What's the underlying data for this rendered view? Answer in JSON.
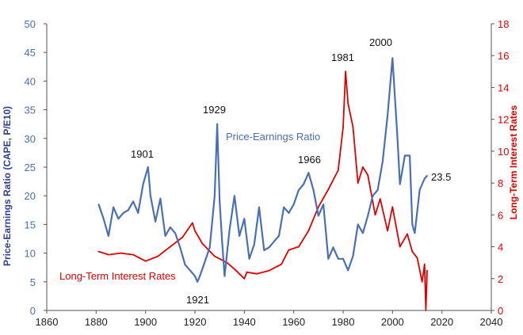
{
  "chart_data": {
    "type": "line",
    "title": "",
    "xlabel": "",
    "xlim": [
      1860,
      2040
    ],
    "x_ticks": [
      "1860",
      "1880",
      "1900",
      "1920",
      "1940",
      "1960",
      "1980",
      "2000",
      "2020",
      "2040"
    ],
    "y_left": {
      "label": "Price-Earnings Ratio (CAPE, P/E10)",
      "lim": [
        0,
        50
      ],
      "ticks": [
        "0",
        "5",
        "10",
        "15",
        "20",
        "25",
        "30",
        "35",
        "40",
        "45",
        "50"
      ],
      "color": "#4a6fb5"
    },
    "y_right": {
      "label": "Long-Term Interest Rates",
      "lim": [
        0,
        18
      ],
      "ticks": [
        "0",
        "2",
        "4",
        "6",
        "8",
        "10",
        "12",
        "14",
        "16",
        "18"
      ],
      "color": "#e00000"
    },
    "series": [
      {
        "name": "Price-Earnings Ratio",
        "axis": "left",
        "color": "#4a6fb5",
        "x": [
          1881,
          1883,
          1885,
          1887,
          1889,
          1891,
          1893,
          1895,
          1897,
          1899,
          1901,
          1902,
          1904,
          1906,
          1908,
          1910,
          1912,
          1914,
          1916,
          1918,
          1920,
          1921,
          1922,
          1924,
          1926,
          1928,
          1929,
          1930,
          1931,
          1932,
          1934,
          1936,
          1938,
          1940,
          1942,
          1944,
          1946,
          1948,
          1950,
          1952,
          1954,
          1956,
          1958,
          1960,
          1962,
          1964,
          1966,
          1968,
          1970,
          1972,
          1974,
          1976,
          1978,
          1980,
          1982,
          1984,
          1986,
          1988,
          1990,
          1992,
          1994,
          1996,
          1998,
          2000,
          2002,
          2003,
          2005,
          2007,
          2008,
          2009,
          2011,
          2013,
          2014
        ],
        "values": [
          18.5,
          16,
          13,
          18,
          16,
          17,
          17.5,
          19,
          17,
          22,
          25,
          20,
          15.5,
          19.5,
          13,
          14.5,
          13.5,
          11,
          8,
          7,
          6,
          5,
          6,
          8.5,
          11,
          20,
          32.5,
          19,
          12,
          6,
          14,
          20,
          13,
          16,
          9,
          11.5,
          18,
          10.5,
          11,
          12,
          13,
          18,
          17,
          18.5,
          21,
          22,
          24,
          21,
          16.5,
          18.5,
          9,
          11,
          9,
          9,
          7,
          9.5,
          15,
          13.5,
          16.5,
          20,
          21,
          26,
          34,
          44,
          30,
          22,
          27,
          27,
          15,
          13.5,
          21,
          23,
          23.5
        ]
      },
      {
        "name": "Long-Term Interest Rates",
        "axis": "right",
        "color": "#e00000",
        "x": [
          1881,
          1885,
          1890,
          1895,
          1900,
          1905,
          1910,
          1915,
          1919,
          1920,
          1923,
          1928,
          1933,
          1936,
          1940,
          1941,
          1945,
          1950,
          1955,
          1958,
          1962,
          1966,
          1970,
          1974,
          1978,
          1980,
          1981,
          1982,
          1984,
          1986,
          1988,
          1990,
          1993,
          1995,
          1998,
          2000,
          2003,
          2006,
          2008,
          2010,
          2012,
          2013,
          2013.5,
          2014
        ],
        "values": [
          3.7,
          3.5,
          3.6,
          3.5,
          3.1,
          3.4,
          4.0,
          4.6,
          5.5,
          5.0,
          4.2,
          3.4,
          3.0,
          2.6,
          2.0,
          2.4,
          2.3,
          2.5,
          2.9,
          3.8,
          4.0,
          5.0,
          6.5,
          7.6,
          8.8,
          11.5,
          15.0,
          13.0,
          11.5,
          8.0,
          9.0,
          8.5,
          6.0,
          7.0,
          5.0,
          6.5,
          4.0,
          4.8,
          3.7,
          3.3,
          1.8,
          2.9,
          0.0,
          2.5
        ]
      }
    ],
    "annotations": [
      "1901",
      "1929",
      "1921",
      "1966",
      "1981",
      "2000",
      "23.5",
      "Price-Earnings Ratio",
      "Long-Term Interest Rates"
    ]
  }
}
